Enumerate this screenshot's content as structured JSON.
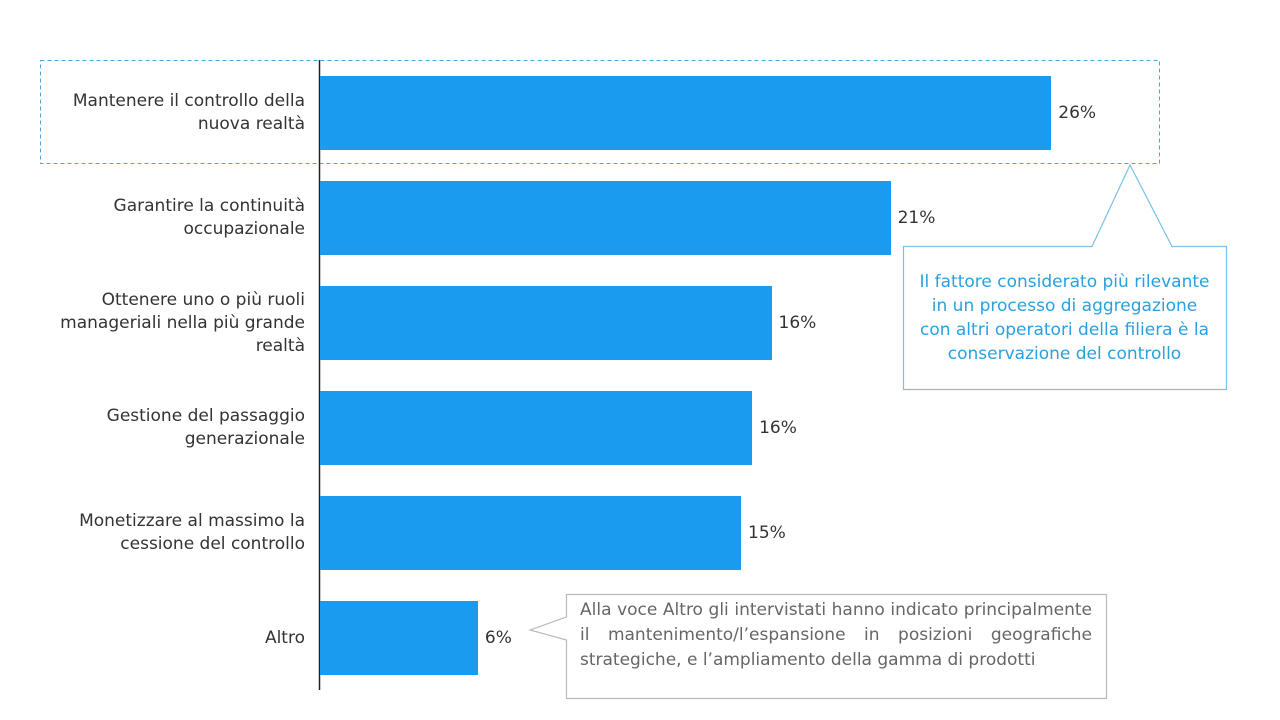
{
  "chart_data": {
    "type": "bar",
    "orientation": "horizontal",
    "color": "#1a9bf0",
    "categories": [
      "Mantenere il controllo della nuova realtà",
      "Garantire la continuità occupazionale",
      "Ottenere uno o più ruoli manageriali nella più grande realtà",
      "Gestione del passaggio generazionale",
      "Monetizzare al massimo la cessione del controllo",
      "Altro"
    ],
    "values": [
      26.4,
      20.6,
      16.3,
      15.6,
      15.2,
      5.7
    ],
    "value_labels": [
      "26%",
      "21%",
      "16%",
      "16%",
      "15%",
      "6%"
    ],
    "annotations": [
      "Il fattore considerato più rilevante in un processo di aggregazione con altri operatori della filiera è la conservazione del controllo",
      "Alla voce Altro gli intervistati hanno indicato principalmente il mantenimento/l’espansione in posizioni geografiche strategiche, e l’ampliamento della gamma di prodotti"
    ]
  }
}
